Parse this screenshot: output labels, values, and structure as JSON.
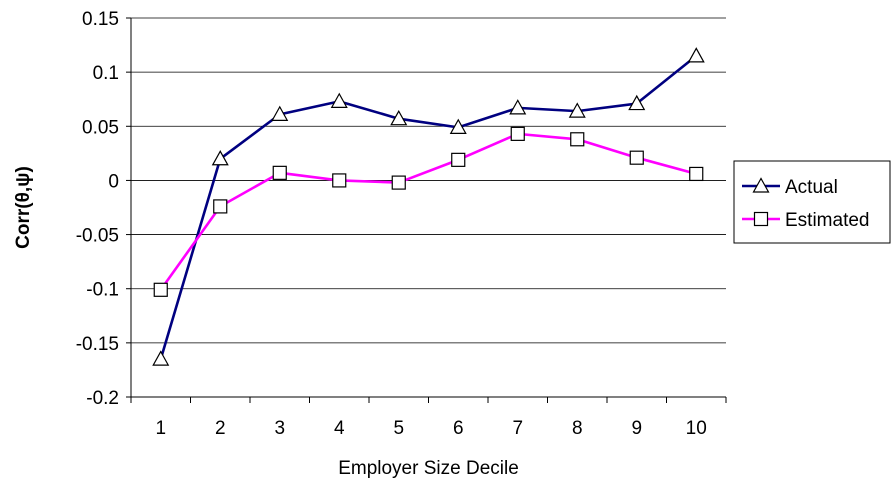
{
  "chart_data": {
    "type": "line",
    "title": "",
    "xlabel": "Employer Size Decile",
    "ylabel": "Corr(θ,ψ)",
    "categories": [
      "1",
      "2",
      "3",
      "4",
      "5",
      "6",
      "7",
      "8",
      "9",
      "10"
    ],
    "ylim": [
      -0.2,
      0.15
    ],
    "yticks": [
      "-0.2",
      "-0.15",
      "-0.1",
      "-0.05",
      "0",
      "0.05",
      "0.1",
      "0.15"
    ],
    "ytick_values": [
      -0.2,
      -0.15,
      -0.1,
      -0.05,
      0,
      0.05,
      0.1,
      0.15
    ],
    "grid": true,
    "legend_position": "right",
    "series": [
      {
        "name": "Actual",
        "color": "#000080",
        "marker": "triangle",
        "values": [
          -0.165,
          0.02,
          0.061,
          0.073,
          0.057,
          0.049,
          0.067,
          0.064,
          0.071,
          0.115
        ]
      },
      {
        "name": "Estimated",
        "color": "#ff00ff",
        "marker": "square",
        "values": [
          -0.101,
          -0.024,
          0.007,
          0.0,
          -0.002,
          0.019,
          0.043,
          0.038,
          0.021,
          0.006
        ]
      }
    ]
  }
}
